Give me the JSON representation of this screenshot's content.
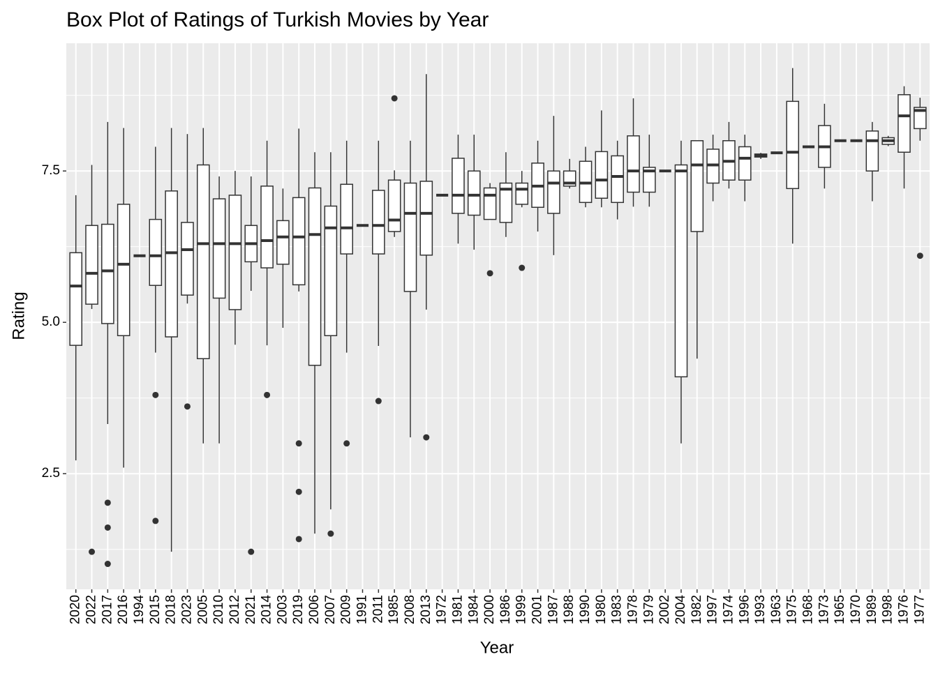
{
  "chart_data": {
    "type": "boxplot",
    "title": "Box Plot of Ratings of Turkish Movies by Year",
    "x_label": "Year",
    "y_label": "Rating",
    "categories": [
      "2020",
      "2022",
      "2017",
      "2016",
      "1994",
      "2015",
      "2018",
      "2023",
      "2005",
      "2010",
      "2012",
      "2021",
      "2014",
      "2003",
      "2019",
      "2006",
      "2007",
      "2009",
      "1991",
      "2011",
      "1985",
      "2008",
      "2013",
      "1972",
      "1981",
      "1984",
      "2000",
      "1986",
      "1999",
      "2001",
      "1987",
      "1988",
      "1990",
      "1980",
      "1983",
      "1978",
      "1979",
      "2002",
      "2004",
      "1982",
      "1997",
      "1974",
      "1996",
      "1993",
      "1963",
      "1975",
      "1968",
      "1973",
      "1965",
      "1970",
      "1989",
      "1998",
      "1976",
      "1977"
    ],
    "min": [
      2.72,
      5.22,
      3.32,
      2.6,
      6.1,
      4.5,
      1.21,
      5.31,
      3.0,
      3.0,
      4.63,
      5.52,
      4.62,
      4.91,
      5.51,
      1.51,
      1.91,
      4.5,
      6.6,
      4.61,
      6.41,
      3.1,
      5.21,
      7.1,
      6.3,
      6.2,
      6.7,
      6.41,
      6.9,
      6.5,
      6.11,
      7.21,
      6.9,
      6.9,
      6.7,
      6.91,
      6.91,
      7.5,
      3.0,
      4.4,
      7.0,
      7.21,
      7.0,
      7.7,
      7.8,
      6.3,
      7.9,
      7.21,
      8.0,
      8.0,
      7.0,
      7.91,
      7.21,
      8.0
    ],
    "q1": [
      4.62,
      5.3,
      4.98,
      4.78,
      6.1,
      5.61,
      4.76,
      5.45,
      4.4,
      5.4,
      5.21,
      6.0,
      5.9,
      5.96,
      5.62,
      4.29,
      4.78,
      6.13,
      6.6,
      6.13,
      6.5,
      5.51,
      6.11,
      7.1,
      6.8,
      6.77,
      6.7,
      6.65,
      6.95,
      6.9,
      6.8,
      7.25,
      6.98,
      7.05,
      6.98,
      7.15,
      7.15,
      7.5,
      4.1,
      6.5,
      7.3,
      7.35,
      7.35,
      7.73,
      7.8,
      7.21,
      7.9,
      7.56,
      8.0,
      8.0,
      7.5,
      7.94,
      7.81,
      8.2
    ],
    "median": [
      5.6,
      5.81,
      5.85,
      5.96,
      6.1,
      6.1,
      6.15,
      6.2,
      6.3,
      6.3,
      6.3,
      6.3,
      6.35,
      6.41,
      6.41,
      6.45,
      6.56,
      6.56,
      6.6,
      6.6,
      6.69,
      6.8,
      6.8,
      7.1,
      7.1,
      7.1,
      7.1,
      7.2,
      7.2,
      7.25,
      7.3,
      7.3,
      7.3,
      7.35,
      7.41,
      7.5,
      7.5,
      7.5,
      7.5,
      7.6,
      7.6,
      7.66,
      7.71,
      7.75,
      7.8,
      7.81,
      7.9,
      7.9,
      8.0,
      8.0,
      8.0,
      8.0,
      8.41,
      8.5
    ],
    "q3": [
      6.15,
      6.6,
      6.62,
      6.95,
      6.1,
      6.7,
      7.17,
      6.65,
      7.6,
      7.04,
      7.1,
      6.6,
      7.25,
      6.68,
      7.06,
      7.22,
      6.92,
      7.28,
      6.6,
      7.18,
      7.35,
      7.3,
      7.33,
      7.1,
      7.71,
      7.5,
      7.22,
      7.3,
      7.3,
      7.63,
      7.5,
      7.5,
      7.66,
      7.82,
      7.75,
      8.08,
      7.56,
      7.5,
      7.6,
      8.0,
      7.86,
      8.0,
      7.9,
      7.78,
      7.8,
      8.65,
      7.9,
      8.25,
      8.0,
      8.0,
      8.16,
      8.05,
      8.76,
      8.55
    ],
    "max": [
      7.1,
      7.6,
      8.31,
      8.21,
      6.1,
      7.9,
      8.21,
      8.11,
      8.21,
      7.41,
      7.5,
      7.41,
      8.0,
      7.21,
      8.2,
      7.81,
      7.81,
      8.0,
      6.6,
      8.0,
      7.51,
      8.0,
      9.1,
      7.1,
      8.1,
      8.1,
      7.3,
      7.81,
      7.5,
      8.0,
      8.41,
      7.7,
      7.9,
      8.5,
      8.0,
      8.7,
      8.1,
      7.5,
      8.0,
      8.0,
      8.1,
      8.31,
      8.1,
      7.8,
      7.8,
      9.2,
      7.9,
      8.61,
      8.0,
      8.0,
      8.31,
      8.08,
      8.9,
      8.71
    ],
    "outliers": [
      [],
      [
        1.21
      ],
      [
        2.02,
        1.61,
        1.01
      ],
      [],
      [],
      [
        3.8,
        1.72
      ],
      [],
      [
        3.61
      ],
      [],
      [],
      [],
      [
        1.21
      ],
      [
        3.8
      ],
      [],
      [
        3.0,
        2.2,
        1.42
      ],
      [],
      [
        1.51
      ],
      [
        3.0
      ],
      [],
      [
        3.7
      ],
      [
        8.7
      ],
      [],
      [
        3.1
      ],
      [],
      [],
      [],
      [
        5.81
      ],
      [],
      [
        5.9
      ],
      [],
      [],
      [],
      [],
      [],
      [],
      [],
      [],
      [],
      [],
      [],
      [],
      [],
      [],
      [],
      [],
      [],
      [],
      [],
      [],
      [],
      [],
      [],
      [],
      [
        6.1
      ]
    ],
    "ylim": [
      0.59,
      9.61
    ],
    "yticks": [
      2.5,
      {
        "value": 5,
        "label": "5.0"
      },
      7.5
    ],
    "y_minor_grid": [
      1.25,
      3.75,
      6.25,
      8.75
    ],
    "grid": true,
    "box_fill": "#ffffff",
    "box_stroke": "#333333",
    "panel_color": "#ebebeb"
  }
}
